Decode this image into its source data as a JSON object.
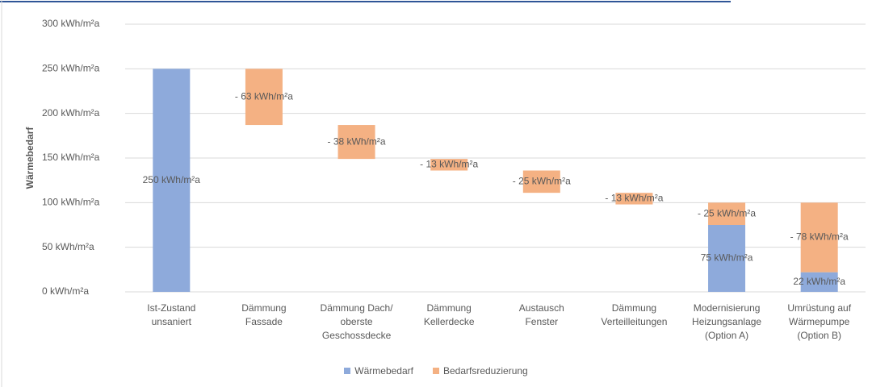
{
  "chart_data": {
    "type": "waterfall",
    "y_label": "Wärmebedarf",
    "categories": [
      "Ist-Zustand\nunsaniert",
      "Dämmung\nFassade",
      "Dämmung Dach/\noberste\nGeschossdecke",
      "Dämmung\nKellerdecke",
      "Austausch\nFenster",
      "Dämmung\nVerteilleitungen",
      "Modernisierung\nHeizungsanlage\n(Option A)",
      "Umrüstung auf\nWärmepumpe\n(Option B)"
    ],
    "series": [
      {
        "name": "Wärmebedarf",
        "color": "#8eaadb",
        "values": [
          250,
          null,
          null,
          null,
          null,
          null,
          75,
          22
        ],
        "value_labels": [
          "250 kWh/m²a",
          null,
          null,
          null,
          null,
          null,
          "75 kWh/m²a",
          "22 kWh/m²a"
        ]
      },
      {
        "name": "Bedarfsreduzierung",
        "color": "#f4b183",
        "values": [
          null,
          -63,
          -38,
          -13,
          -25,
          -13,
          -25,
          -78
        ],
        "value_labels": [
          null,
          "- 63 kWh/m²a",
          "- 38 kWh/m²a",
          "- 13 kWh/m²a",
          "- 25 kWh/m²a",
          "- 13 kWh/m²a",
          "- 25 kWh/m²a",
          "- 78 kWh/m²a"
        ]
      }
    ],
    "ylim": [
      0,
      300
    ],
    "yticks": [
      {
        "value": 0,
        "label": "0 kWh/m²a"
      },
      {
        "value": 50,
        "label": "50 kWh/m²a"
      },
      {
        "value": 100,
        "label": "100 kWh/m²a"
      },
      {
        "value": 150,
        "label": "150 kWh/m²a"
      },
      {
        "value": 200,
        "label": "200 kWh/m²a"
      },
      {
        "value": 250,
        "label": "250 kWh/m²a"
      },
      {
        "value": 300,
        "label": "300 kWh/m²a"
      }
    ],
    "grid": true,
    "legend": "bottom"
  }
}
